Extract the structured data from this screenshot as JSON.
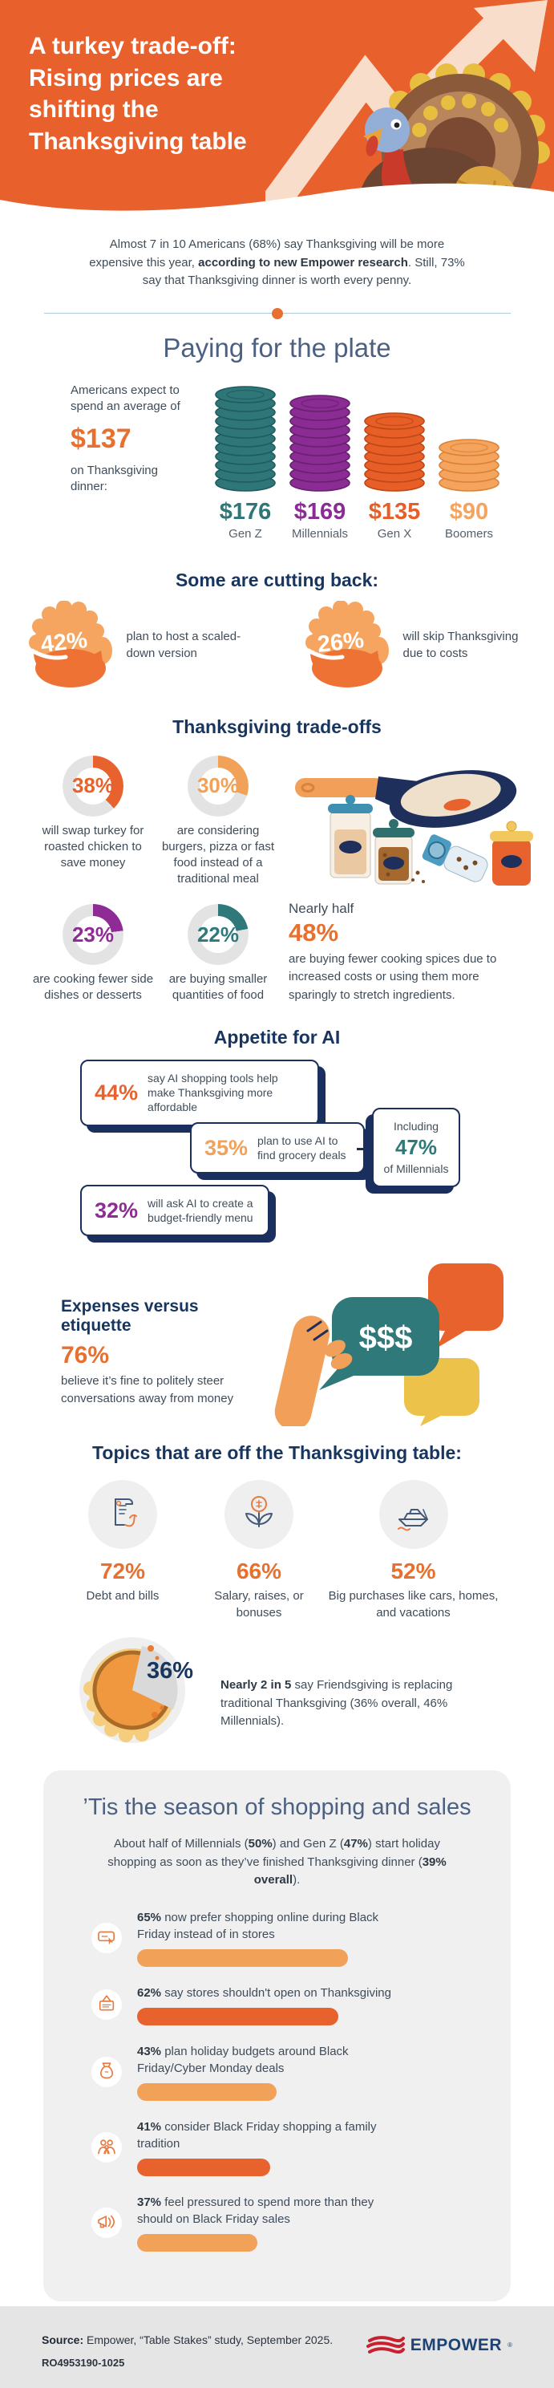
{
  "colors": {
    "orange": "#E8622D",
    "light_orange": "#F2A159",
    "teal": "#2F797B",
    "purple": "#8E2B95",
    "navy": "#17355F",
    "slate_blue": "#4C6181",
    "card_navy": "#1B2F5E",
    "ring_gray": "#E3E3E3",
    "amount_orange": "#E8702E"
  },
  "header": {
    "title_lines": [
      "A turkey trade-off:",
      "Rising prices are",
      "shifting the",
      "Thanksgiving table"
    ]
  },
  "intro": {
    "t1": "Almost 7 in 10 Americans (68%) say Thanksgiving will be more expensive this year, ",
    "b1": "according to new Empower research",
    "t2": ". Still, 73% say that Thanksgiving dinner is worth every penny."
  },
  "paying": {
    "title": "Paying for the plate",
    "lead_pre": "Americans expect to spend an average of",
    "amount": "$137",
    "lead_post": "on Thanksgiving dinner:",
    "stacks": [
      {
        "value": 176,
        "display": "$176",
        "label": "Gen Z",
        "color": "#2E7678",
        "rim": "#1F5C5E"
      },
      {
        "value": 169,
        "display": "$169",
        "label": "Millennials",
        "color": "#8A2C93",
        "rim": "#68206F"
      },
      {
        "value": 135,
        "display": "$135",
        "label": "Gen X",
        "color": "#E75E27",
        "rim": "#BC4717"
      },
      {
        "value": 90,
        "display": "$90",
        "label": "Boomers",
        "color": "#F4A45D",
        "rim": "#DB8238"
      }
    ]
  },
  "cutting_back": {
    "title": "Some are cutting back:",
    "items": [
      {
        "pct": "42%",
        "text": "plan to host a scaled-down version"
      },
      {
        "pct": "26%",
        "text": "will skip Thanksgiving due to costs"
      }
    ]
  },
  "trade_offs": {
    "title": "Thanksgiving trade-offs",
    "donuts": [
      {
        "value": 38,
        "pct": "38%",
        "color": "#E8622D",
        "label": "will swap turkey for roasted chicken to save money"
      },
      {
        "value": 30,
        "pct": "30%",
        "color": "#F2A159",
        "label": "are considering burgers, pizza or fast food instead of a traditional meal"
      },
      {
        "value": 23,
        "pct": "23%",
        "color": "#8E2B95",
        "label": "are cooking fewer side dishes or desserts"
      },
      {
        "value": 22,
        "pct": "22%",
        "color": "#2F797B",
        "label": "are buying smaller quantities of food"
      }
    ],
    "spices": {
      "lead": "Nearly half",
      "pct": "48%",
      "text": "are buying fewer cooking spices due to increased costs or using them more sparingly to stretch ingredients."
    }
  },
  "ai": {
    "title": "Appetite for AI",
    "cards": [
      {
        "pct": "44%",
        "text": "say AI shopping tools help make Thanksgiving more affordable",
        "color": "#E8622D"
      },
      {
        "pct": "35%",
        "text": "plan to use AI to find grocery deals",
        "color": "#F2A159"
      },
      {
        "pct": "32%",
        "text": "will ask AI to create a budget-friendly menu",
        "color": "#8E2B95"
      }
    ],
    "aside": {
      "pre": "Including",
      "pct": "47%",
      "post": "of Millennials",
      "color": "#2F797B"
    }
  },
  "etiquette": {
    "title": "Expenses versus etiquette",
    "pct": "76%",
    "text": "believe it’s fine to politely steer conversations away from money",
    "bubble_text": "$$$"
  },
  "topics": {
    "title": "Topics that are off the Thanksgiving table:",
    "items": [
      {
        "pct": "72%",
        "label": "Debt and bills"
      },
      {
        "pct": "66%",
        "label": "Salary, raises, or bonuses"
      },
      {
        "pct": "52%",
        "label": "Big purchases like cars, homes, and vacations"
      }
    ]
  },
  "friendsgiving": {
    "pct": "36%",
    "bold": "Nearly 2 in 5",
    "text": " say Friendsgiving is replacing traditional Thanksgiving (36% overall, 46% Millennials)."
  },
  "shopping": {
    "title": "’Tis the season of shopping and sales",
    "intro": {
      "t1": "About half of Millennials (",
      "b1": "50%",
      "t2": ") and Gen Z (",
      "b2": "47%",
      "t3": ") start holiday shopping as soon as they’ve finished Thanksgiving dinner (",
      "b3": "39% overall",
      "t4": ")."
    },
    "bars": [
      {
        "value": 65,
        "pct": "65%",
        "text": "now prefer shopping online during Black Friday instead of in stores",
        "shade": "light"
      },
      {
        "value": 62,
        "pct": "62%",
        "text": "say stores shouldn't open on Thanksgiving",
        "shade": "dark"
      },
      {
        "value": 43,
        "pct": "43%",
        "text": "plan holiday budgets around Black Friday/Cyber Monday deals",
        "shade": "light"
      },
      {
        "value": 41,
        "pct": "41%",
        "text": "consider Black Friday shopping a family tradition",
        "shade": "dark"
      },
      {
        "value": 37,
        "pct": "37%",
        "text": "feel pressured to spend more than they should on Black Friday sales",
        "shade": "light"
      }
    ]
  },
  "footer": {
    "source_label": "Source:",
    "source_text": " Empower, “Table Stakes” study, September 2025.",
    "code": "RO4953190-1025",
    "logo": "EMPOWER",
    "reg": "®"
  },
  "chart_data": [
    {
      "type": "bar",
      "title": "Paying for the plate — expected Thanksgiving dinner spending by generation",
      "categories": [
        "Gen Z",
        "Millennials",
        "Gen X",
        "Boomers"
      ],
      "values": [
        176,
        169,
        135,
        90
      ],
      "unit": "USD",
      "annotations": [
        "Americans expect to spend an average of $137 on Thanksgiving dinner",
        "68% say Thanksgiving will be more expensive this year",
        "73% say Thanksgiving dinner is worth every penny"
      ]
    },
    {
      "type": "bar",
      "title": "Some are cutting back",
      "categories": [
        "plan to host a scaled-down version",
        "will skip Thanksgiving due to costs"
      ],
      "values": [
        42,
        26
      ],
      "unit": "%"
    },
    {
      "type": "bar",
      "title": "Thanksgiving trade-offs",
      "categories": [
        "will swap turkey for roasted chicken to save money",
        "are considering burgers, pizza or fast food instead of a traditional meal",
        "are cooking fewer side dishes or desserts",
        "are buying smaller quantities of food",
        "are buying fewer cooking spices due to increased costs or using them more sparingly to stretch ingredients"
      ],
      "values": [
        38,
        30,
        23,
        22,
        48
      ],
      "unit": "%"
    },
    {
      "type": "bar",
      "title": "Appetite for AI",
      "categories": [
        "say AI shopping tools help make Thanksgiving more affordable",
        "plan to use AI to find grocery deals",
        "plan to use AI to find grocery deals (Millennials)",
        "will ask AI to create a budget-friendly menu"
      ],
      "values": [
        44,
        35,
        47,
        32
      ],
      "unit": "%"
    },
    {
      "type": "bar",
      "title": "Expenses versus etiquette",
      "categories": [
        "believe it's fine to politely steer conversations away from money"
      ],
      "values": [
        76
      ],
      "unit": "%"
    },
    {
      "type": "bar",
      "title": "Topics that are off the Thanksgiving table",
      "categories": [
        "Debt and bills",
        "Salary, raises, or bonuses",
        "Big purchases like cars, homes, and vacations"
      ],
      "values": [
        72,
        66,
        52
      ],
      "unit": "%"
    },
    {
      "type": "pie",
      "title": "Friendsgiving is replacing traditional Thanksgiving",
      "categories": [
        "say Friendsgiving is replacing traditional Thanksgiving (overall)",
        "other"
      ],
      "values": [
        36,
        64
      ],
      "unit": "%",
      "annotations": [
        "Nearly 2 in 5 overall",
        "46% of Millennials"
      ]
    },
    {
      "type": "bar",
      "title": "'Tis the season of shopping and sales",
      "categories": [
        "now prefer shopping online during Black Friday instead of in stores",
        "say stores shouldn't open on Thanksgiving",
        "plan holiday budgets around Black Friday/Cyber Monday deals",
        "consider Black Friday shopping a family tradition",
        "feel pressured to spend more than they should on Black Friday sales"
      ],
      "values": [
        65,
        62,
        43,
        41,
        37
      ],
      "unit": "%",
      "annotations": [
        "About half of Millennials (50%) and Gen Z (47%) start holiday shopping as soon as they've finished Thanksgiving dinner (39% overall)"
      ]
    }
  ]
}
